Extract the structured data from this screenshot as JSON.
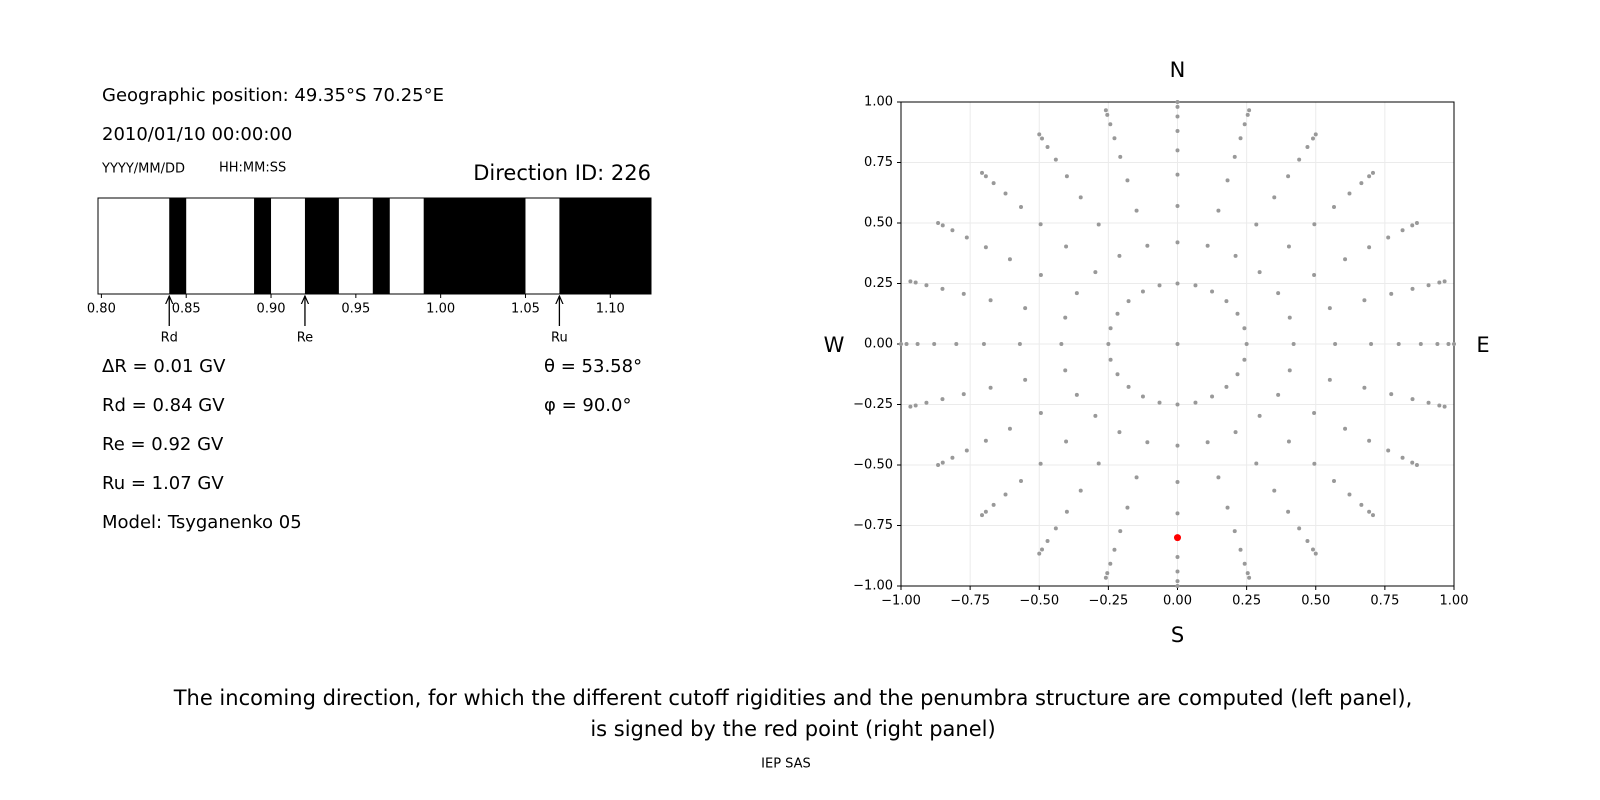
{
  "header": {
    "position": "Geographic position: 49.35°S 70.25°E",
    "datetime": "2010/01/10 00:00:00",
    "date_format": "YYYY/MM/DD",
    "time_format": "HH:MM:SS",
    "direction_id": "Direction ID: 226"
  },
  "parameters": [
    "ΔR = 0.01 GV",
    "Rd = 0.84 GV",
    "Re = 0.92 GV",
    "Ru = 1.07 GV",
    "Model: Tsyganenko 05"
  ],
  "angles": [
    "θ = 53.58°",
    "φ = 90.0°"
  ],
  "chart_data": [
    {
      "type": "penumbra",
      "color": "#000000",
      "xlim": [
        0.798,
        1.124
      ],
      "xticks": [
        {
          "value": 0.8,
          "label": "0.80"
        },
        {
          "value": 0.85,
          "label": "0.85"
        },
        {
          "value": 0.9,
          "label": "0.90"
        },
        {
          "value": 0.95,
          "label": "0.95"
        },
        {
          "value": 1.0,
          "label": "1.00"
        },
        {
          "value": 1.05,
          "label": "1.05"
        },
        {
          "value": 1.1,
          "label": "1.10"
        }
      ],
      "intervals": [
        [
          0.84,
          0.85
        ],
        [
          0.89,
          0.9
        ],
        [
          0.92,
          0.94
        ],
        [
          0.96,
          0.97
        ],
        [
          0.99,
          1.05
        ],
        [
          1.07,
          1.124
        ]
      ],
      "markers": [
        {
          "label": "Rd",
          "value": 0.84
        },
        {
          "label": "Re",
          "value": 0.92
        },
        {
          "label": "Ru",
          "value": 1.07
        }
      ]
    },
    {
      "type": "scatter",
      "color": "#999999",
      "grid": true,
      "compass": {
        "north": "N",
        "south": "S",
        "west": "W",
        "east": "E"
      },
      "xlim": [
        -1,
        1
      ],
      "ylim": [
        -1,
        1
      ],
      "xticks": [
        {
          "value": -1,
          "label": "−1.00"
        },
        {
          "value": -0.75,
          "label": "−0.75"
        },
        {
          "value": -0.5,
          "label": "−0.50"
        },
        {
          "value": -0.25,
          "label": "−0.25"
        },
        {
          "value": 0,
          "label": "0.00"
        },
        {
          "value": 0.25,
          "label": "0.25"
        },
        {
          "value": 0.5,
          "label": "0.50"
        },
        {
          "value": 0.75,
          "label": "0.75"
        },
        {
          "value": 1,
          "label": "1.00"
        }
      ],
      "yticks": [
        {
          "value": -1,
          "label": "−1.00"
        },
        {
          "value": -0.75,
          "label": "−0.75"
        },
        {
          "value": -0.5,
          "label": "−0.50"
        },
        {
          "value": -0.25,
          "label": "−0.25"
        },
        {
          "value": 0,
          "label": "0.00"
        },
        {
          "value": 0.25,
          "label": "0.25"
        },
        {
          "value": 0.5,
          "label": "0.50"
        },
        {
          "value": 0.75,
          "label": "0.75"
        },
        {
          "value": 1,
          "label": "1.00"
        }
      ],
      "rings": [
        {
          "x": [
            0
          ],
          "y": [
            0
          ]
        },
        {
          "x": [
            0.25,
            0.242,
            0.217,
            0.177,
            0.125,
            0.065,
            0,
            -0.065,
            -0.125,
            -0.177,
            -0.217,
            -0.242,
            -0.25,
            -0.242,
            -0.217,
            -0.177,
            -0.125,
            -0.065,
            0,
            0.065,
            0.125,
            0.177,
            0.217,
            0.242
          ],
          "y": [
            0,
            0.065,
            0.125,
            0.177,
            0.217,
            0.242,
            0.25,
            0.242,
            0.217,
            0.177,
            0.125,
            0.065,
            0,
            -0.065,
            -0.125,
            -0.177,
            -0.217,
            -0.242,
            -0.25,
            -0.242,
            -0.217,
            -0.177,
            -0.125,
            -0.065
          ]
        },
        {
          "x": [
            0.42,
            0.406,
            0.364,
            0.297,
            0.21,
            0.109,
            0,
            -0.109,
            -0.21,
            -0.297,
            -0.364,
            -0.406,
            -0.42,
            -0.406,
            -0.364,
            -0.297,
            -0.21,
            -0.109,
            0,
            0.109,
            0.21,
            0.297,
            0.364,
            0.406
          ],
          "y": [
            0,
            0.109,
            0.21,
            0.297,
            0.364,
            0.406,
            0.42,
            0.406,
            0.364,
            0.297,
            0.21,
            0.109,
            0,
            -0.109,
            -0.21,
            -0.297,
            -0.364,
            -0.406,
            -0.42,
            -0.406,
            -0.364,
            -0.297,
            -0.21,
            -0.109
          ]
        },
        {
          "x": [
            0.57,
            0.551,
            0.494,
            0.403,
            0.285,
            0.148,
            0,
            -0.148,
            -0.285,
            -0.403,
            -0.494,
            -0.551,
            -0.57,
            -0.551,
            -0.494,
            -0.403,
            -0.285,
            -0.148,
            0,
            0.148,
            0.285,
            0.403,
            0.494,
            0.551
          ],
          "y": [
            0,
            0.148,
            0.285,
            0.403,
            0.494,
            0.551,
            0.57,
            0.551,
            0.494,
            0.403,
            0.285,
            0.148,
            0,
            -0.148,
            -0.285,
            -0.403,
            -0.494,
            -0.551,
            -0.57,
            -0.551,
            -0.494,
            -0.403,
            -0.285,
            -0.148
          ]
        },
        {
          "x": [
            0.7,
            0.676,
            0.606,
            0.495,
            0.35,
            0.181,
            0,
            -0.181,
            -0.35,
            -0.495,
            -0.606,
            -0.676,
            -0.7,
            -0.676,
            -0.606,
            -0.495,
            -0.35,
            -0.181,
            0,
            0.181,
            0.35,
            0.495,
            0.606,
            0.676
          ],
          "y": [
            0,
            0.181,
            0.35,
            0.495,
            0.606,
            0.676,
            0.7,
            0.676,
            0.606,
            0.495,
            0.35,
            0.181,
            0,
            -0.181,
            -0.35,
            -0.495,
            -0.606,
            -0.676,
            -0.7,
            -0.676,
            -0.606,
            -0.495,
            -0.35,
            -0.181
          ]
        },
        {
          "x": [
            0.8,
            0.773,
            0.693,
            0.566,
            0.4,
            0.207,
            0,
            -0.207,
            -0.4,
            -0.566,
            -0.693,
            -0.773,
            -0.8,
            -0.773,
            -0.693,
            -0.566,
            -0.4,
            -0.207,
            0,
            0.207,
            0.4,
            0.566,
            0.693,
            0.773
          ],
          "y": [
            0,
            0.207,
            0.4,
            0.566,
            0.693,
            0.773,
            0.8,
            0.773,
            0.693,
            0.566,
            0.4,
            0.207,
            0,
            -0.207,
            -0.4,
            -0.566,
            -0.693,
            -0.773,
            -0.8,
            -0.773,
            -0.693,
            -0.566,
            -0.4,
            -0.207
          ]
        },
        {
          "x": [
            0.88,
            0.85,
            0.762,
            0.622,
            0.44,
            0.228,
            0,
            -0.228,
            -0.44,
            -0.622,
            -0.762,
            -0.85,
            -0.88,
            -0.85,
            -0.762,
            -0.622,
            -0.44,
            -0.228,
            0,
            0.228,
            0.44,
            0.622,
            0.762,
            0.85
          ],
          "y": [
            0,
            0.228,
            0.44,
            0.622,
            0.762,
            0.85,
            0.88,
            0.85,
            0.762,
            0.622,
            0.44,
            0.228,
            0,
            -0.228,
            -0.44,
            -0.622,
            -0.762,
            -0.85,
            -0.88,
            -0.85,
            -0.762,
            -0.622,
            -0.44,
            -0.228
          ]
        },
        {
          "x": [
            0.94,
            0.908,
            0.814,
            0.665,
            0.47,
            0.243,
            0,
            -0.243,
            -0.47,
            -0.665,
            -0.814,
            -0.908,
            -0.94,
            -0.908,
            -0.814,
            -0.665,
            -0.47,
            -0.243,
            0,
            0.243,
            0.47,
            0.665,
            0.814,
            0.908
          ],
          "y": [
            0,
            0.243,
            0.47,
            0.665,
            0.814,
            0.908,
            0.94,
            0.908,
            0.814,
            0.665,
            0.47,
            0.243,
            0,
            -0.243,
            -0.47,
            -0.665,
            -0.814,
            -0.908,
            -0.94,
            -0.908,
            -0.814,
            -0.665,
            -0.47,
            -0.243
          ]
        },
        {
          "x": [
            0.98,
            0.947,
            0.849,
            0.693,
            0.49,
            0.254,
            0,
            -0.254,
            -0.49,
            -0.693,
            -0.849,
            -0.947,
            -0.98,
            -0.947,
            -0.849,
            -0.693,
            -0.49,
            -0.254,
            0,
            0.254,
            0.49,
            0.693,
            0.849,
            0.947
          ],
          "y": [
            0,
            0.254,
            0.49,
            0.693,
            0.849,
            0.947,
            0.98,
            0.947,
            0.849,
            0.693,
            0.49,
            0.254,
            0,
            -0.254,
            -0.49,
            -0.693,
            -0.849,
            -0.947,
            -0.98,
            -0.947,
            -0.849,
            -0.693,
            -0.49,
            -0.254
          ]
        },
        {
          "x": [
            1,
            0.966,
            0.866,
            0.707,
            0.5,
            0.259,
            0,
            -0.259,
            -0.5,
            -0.707,
            -0.866,
            -0.966,
            -1,
            -0.966,
            -0.866,
            -0.707,
            -0.5,
            -0.259,
            0,
            0.259,
            0.5,
            0.707,
            0.866,
            0.966
          ],
          "y": [
            0,
            0.259,
            0.5,
            0.707,
            0.866,
            0.966,
            1,
            0.966,
            0.866,
            0.707,
            0.5,
            0.259,
            0,
            -0.259,
            -0.5,
            -0.707,
            -0.866,
            -0.966,
            -1,
            -0.966,
            -0.866,
            -0.707,
            -0.5,
            -0.259
          ]
        }
      ],
      "highlight": {
        "x": 0,
        "y": -0.8,
        "color": "#ff0000"
      }
    }
  ],
  "caption": [
    "The incoming direction, for which the different cutoff rigidities and the penumbra structure are computed (left panel),",
    "is signed by the red point (right panel)"
  ],
  "footer": "IEP SAS"
}
